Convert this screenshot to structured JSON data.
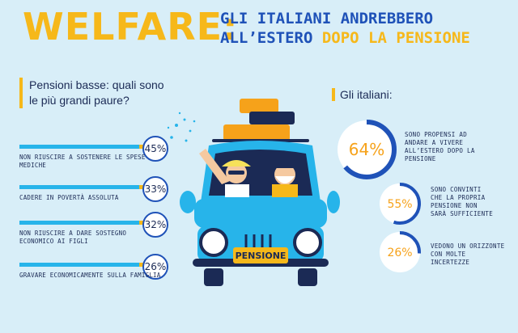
{
  "title": {
    "main": "WELFARE:",
    "line1": "GLI ITALIANI ANDREBBERO",
    "line2_part1": "ALL’ESTERO",
    "line2_part2": "DOPO LA PENSIONE"
  },
  "left": {
    "heading": "Pensioni basse: quali sono le più grandi paure?",
    "items": [
      {
        "percent": "45%",
        "label": "NON RIUSCIRE A SOSTENERE LE SPESE MEDICHE"
      },
      {
        "percent": "33%",
        "label": "CADERE IN POVERTÀ ASSOLUTA"
      },
      {
        "percent": "32%",
        "label": "NON RIUSCIRE A DARE SOSTEGNO ECONOMICO AI FIGLI"
      },
      {
        "percent": "26%",
        "label": "GRAVARE ECONOMICAMENTE SULLA FAMIGLIA"
      }
    ]
  },
  "right": {
    "heading": "Gli italiani:",
    "items": [
      {
        "percent": "64%",
        "label": "SONO PROPENSI AD ANDARE A VIVERE ALL’ESTERO DOPO LA PENSIONE"
      },
      {
        "percent": "55%",
        "label": "SONO CONVINTI CHE LA PROPRIA PENSIONE NON SARÀ SUFFICIENTE"
      },
      {
        "percent": "26%",
        "label": "VEDONO UN ORIZZONTE CON MOLTE INCERTEZZE"
      }
    ]
  },
  "car": {
    "plate": "PENSIONE"
  },
  "colors": {
    "background": "#d8eef8",
    "yellow": "#f6b81a",
    "blue": "#1f52b8",
    "cyan": "#27b4ea",
    "navy": "#1b2a55"
  }
}
